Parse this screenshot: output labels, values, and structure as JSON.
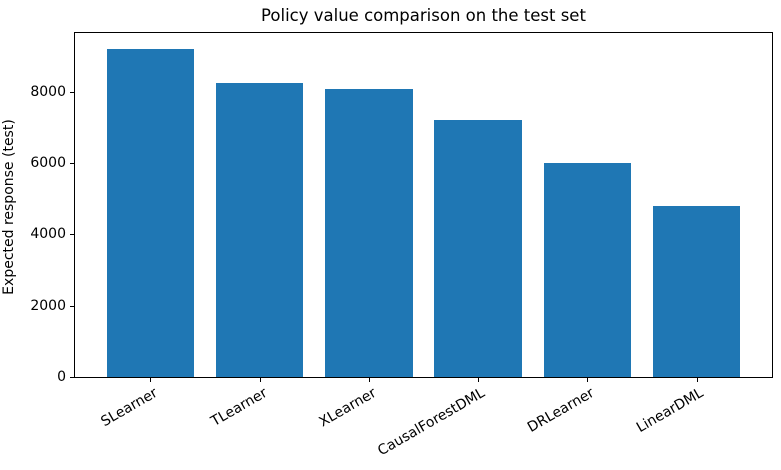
{
  "figure": {
    "background": "#ffffff",
    "text_color": "#000000"
  },
  "chart_data": {
    "type": "bar",
    "title": "Policy value comparison on the test set",
    "xlabel": "",
    "ylabel": "Expected response (test)",
    "categories": [
      "SLearner",
      "TLearner",
      "XLearner",
      "CausalForestDML",
      "DRLearner",
      "LinearDML"
    ],
    "values": [
      9210,
      8260,
      8090,
      7220,
      6000,
      4810
    ],
    "yticks": [
      0,
      2000,
      4000,
      6000,
      8000
    ],
    "ylim": [
      0,
      9650
    ],
    "bar_color": "#1f77b4",
    "grid": false,
    "legend": false,
    "x_tick_rotation_deg": 30
  }
}
